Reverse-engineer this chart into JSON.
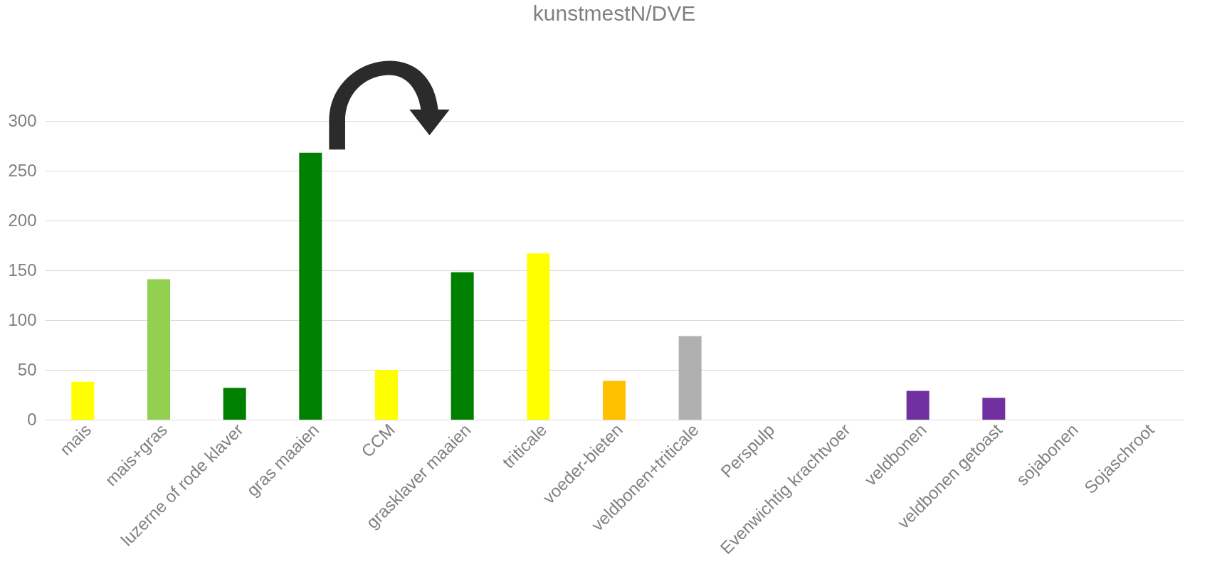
{
  "chart_data": {
    "type": "bar",
    "title": "kunstmestN/DVE",
    "categories": [
      "mais",
      "mais+gras",
      "luzerne of rode klaver",
      "gras maaien",
      "CCM",
      "grasklaver maaien",
      "triticale",
      "voeder-bieten",
      "veldbonen+triticale",
      "Perspulp",
      "Evenwichtig krachtvoer",
      "veldbonen",
      "veldbonen getoast",
      "sojabonen",
      "Sojaschroot"
    ],
    "values": [
      38,
      141,
      32,
      268,
      50,
      148,
      167,
      39,
      84,
      0,
      0,
      29,
      22,
      0,
      0
    ],
    "colors": [
      "#ffff00",
      "#92d050",
      "#008000",
      "#008000",
      "#ffff00",
      "#008000",
      "#ffff00",
      "#ffc000",
      "#b0b0b0",
      "#b0b0b0",
      "#b0b0b0",
      "#7030a0",
      "#7030a0",
      "#7030a0",
      "#7030a0"
    ],
    "ylim": [
      0,
      300
    ],
    "yticks": [
      0,
      50,
      100,
      150,
      200,
      250,
      300
    ],
    "grid": "y",
    "legend": false
  }
}
